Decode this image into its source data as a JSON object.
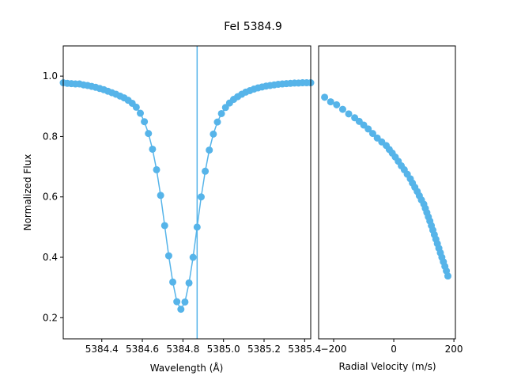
{
  "figure": {
    "title": "FeI 5384.9"
  },
  "colors": {
    "series": "#56B4E9",
    "axes": "#000000",
    "background": "#ffffff"
  },
  "chart_data": [
    {
      "type": "line",
      "title": "",
      "xlabel": "Wavelength (Å)",
      "ylabel": "Normalized Flux",
      "xlim": [
        5384.21,
        5385.43
      ],
      "ylim": [
        0.13,
        1.1
      ],
      "xticks": [
        5384.4,
        5384.6,
        5384.8,
        5385.0,
        5385.2,
        5385.4
      ],
      "xtick_labels": [
        "5384.4",
        "5384.6",
        "5384.8",
        "5385.0",
        "5385.2",
        "5385.4"
      ],
      "yticks": [
        0.2,
        0.4,
        0.6,
        0.8,
        1.0
      ],
      "ytick_labels": [
        "0.2",
        "0.4",
        "0.6",
        "0.8",
        "1.0"
      ],
      "markers": true,
      "vline": 5384.87,
      "series": [
        {
          "x": [
            5384.21,
            5384.23,
            5384.25,
            5384.27,
            5384.29,
            5384.31,
            5384.33,
            5384.35,
            5384.37,
            5384.39,
            5384.41,
            5384.43,
            5384.45,
            5384.47,
            5384.49,
            5384.51,
            5384.53,
            5384.55,
            5384.57,
            5384.59,
            5384.61,
            5384.63,
            5384.65,
            5384.67,
            5384.69,
            5384.71,
            5384.73,
            5384.75,
            5384.77,
            5384.79,
            5384.81,
            5384.83,
            5384.85,
            5384.87,
            5384.89,
            5384.91,
            5384.93,
            5384.95,
            5384.97,
            5384.99,
            5385.01,
            5385.03,
            5385.05,
            5385.07,
            5385.09,
            5385.11,
            5385.13,
            5385.15,
            5385.17,
            5385.19,
            5385.21,
            5385.23,
            5385.25,
            5385.27,
            5385.29,
            5385.31,
            5385.33,
            5385.35,
            5385.37,
            5385.39,
            5385.41,
            5385.43
          ],
          "y": [
            0.978,
            0.976,
            0.975,
            0.974,
            0.974,
            0.971,
            0.969,
            0.966,
            0.963,
            0.959,
            0.955,
            0.95,
            0.945,
            0.94,
            0.934,
            0.928,
            0.92,
            0.91,
            0.897,
            0.877,
            0.849,
            0.81,
            0.758,
            0.69,
            0.605,
            0.505,
            0.405,
            0.318,
            0.253,
            0.228,
            0.252,
            0.315,
            0.4,
            0.5,
            0.6,
            0.685,
            0.755,
            0.808,
            0.848,
            0.876,
            0.896,
            0.911,
            0.923,
            0.932,
            0.94,
            0.947,
            0.952,
            0.957,
            0.961,
            0.964,
            0.967,
            0.969,
            0.971,
            0.973,
            0.974,
            0.975,
            0.976,
            0.977,
            0.977,
            0.978,
            0.978,
            0.978
          ]
        }
      ]
    },
    {
      "type": "scatter",
      "title": "",
      "xlabel": "Radial Velocity (m/s)",
      "ylabel": "",
      "xlim": [
        -250,
        205
      ],
      "ylim": [
        0.13,
        1.1
      ],
      "xticks": [
        -200,
        0,
        200
      ],
      "xtick_labels": [
        "−200",
        "0",
        "200"
      ],
      "series": [
        {
          "x": [
            -230,
            -210,
            -190,
            -170,
            -150,
            -130,
            -115,
            -100,
            -85,
            -70,
            -55,
            -40,
            -25,
            -15,
            -5,
            5,
            15,
            25,
            35,
            45,
            55,
            62,
            70,
            78,
            85,
            92,
            100,
            105,
            110,
            115,
            120,
            125,
            130,
            135,
            140,
            145,
            150,
            155,
            160,
            165,
            170,
            175,
            180
          ],
          "y": [
            0.93,
            0.915,
            0.905,
            0.89,
            0.875,
            0.862,
            0.85,
            0.838,
            0.825,
            0.81,
            0.795,
            0.782,
            0.77,
            0.757,
            0.745,
            0.732,
            0.718,
            0.703,
            0.69,
            0.675,
            0.66,
            0.646,
            0.632,
            0.618,
            0.604,
            0.59,
            0.576,
            0.562,
            0.548,
            0.534,
            0.52,
            0.505,
            0.49,
            0.475,
            0.46,
            0.445,
            0.43,
            0.415,
            0.4,
            0.385,
            0.37,
            0.355,
            0.338
          ]
        }
      ]
    }
  ]
}
